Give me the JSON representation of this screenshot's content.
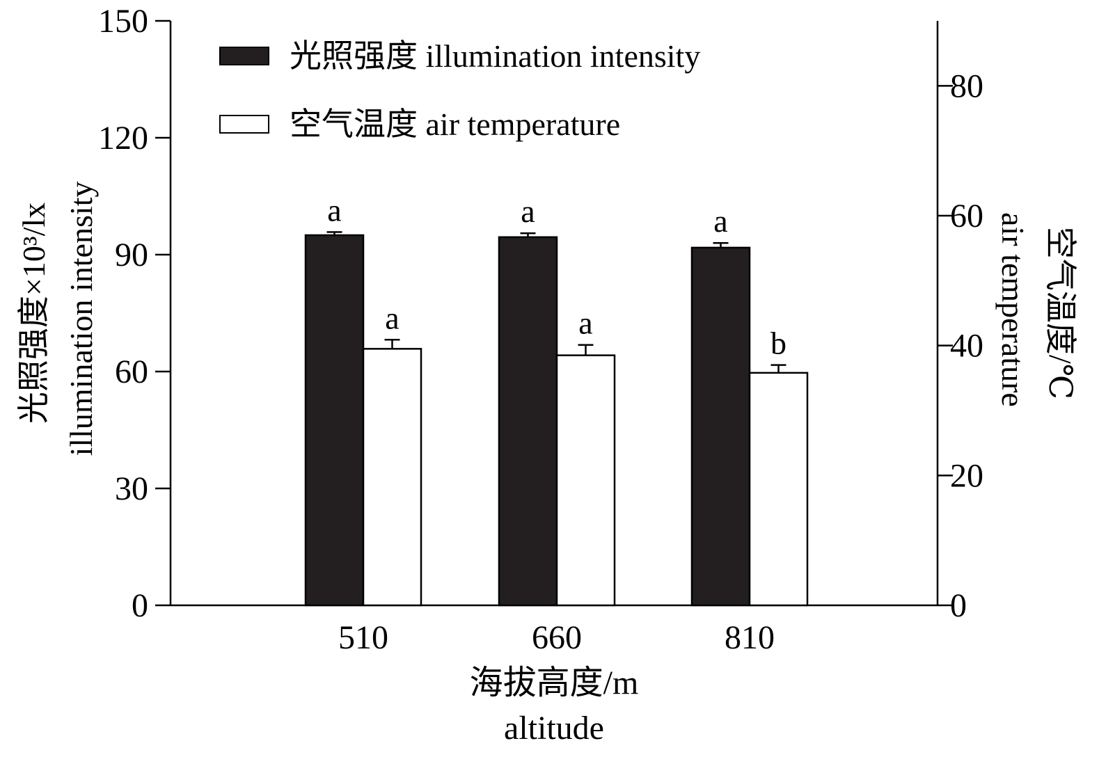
{
  "chart_data": {
    "type": "bar",
    "categories": [
      "510",
      "660",
      "810"
    ],
    "xlabel": "海拔高度/m",
    "xlabel_en": "altitude",
    "ylabel": "光照强度×10³/lx",
    "ylabel_en": "illumination intensity",
    "y2label": "空气温度/℃",
    "y2label_en": "air temperature",
    "ylim": [
      0,
      150
    ],
    "y2lim": [
      0,
      90
    ],
    "yticks": [
      "0",
      "30",
      "60",
      "90",
      "120",
      "150"
    ],
    "y2ticks": [
      "0",
      "20",
      "40",
      "60",
      "80"
    ],
    "legend_position": "top-left",
    "series": [
      {
        "name": "光照强度 illumination intensity",
        "axis": "left",
        "color": "#231f20",
        "values": [
          95.0,
          94.5,
          91.8
        ],
        "errors": [
          0.8,
          1.0,
          1.2
        ],
        "letters": [
          "a",
          "a",
          "a"
        ]
      },
      {
        "name": "空气温度 air temperature",
        "axis": "right",
        "color": "#ffffff",
        "values": [
          39.5,
          38.5,
          35.8
        ],
        "errors": [
          1.4,
          1.6,
          1.2
        ],
        "letters": [
          "a",
          "a",
          "b"
        ]
      }
    ]
  }
}
